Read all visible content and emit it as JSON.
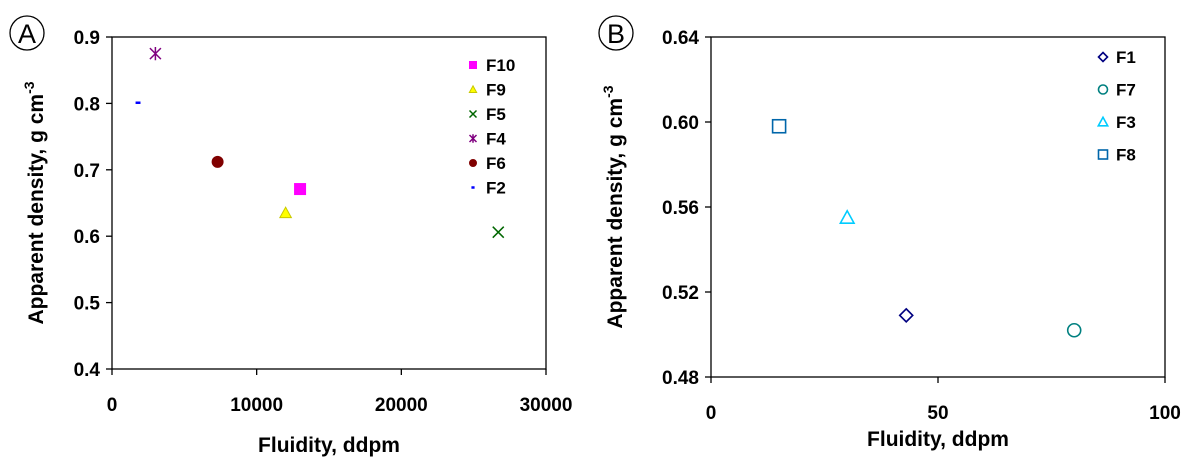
{
  "chart_data": [
    {
      "panel": "A",
      "type": "scatter",
      "title": "",
      "xlabel": "Fluidity, ddpm",
      "ylabel": "Apparent density, g cm",
      "ylabel_sup": "-3",
      "xlim": [
        0,
        30000
      ],
      "ylim": [
        0.4,
        0.9
      ],
      "x_ticks": [
        0,
        10000,
        20000,
        30000
      ],
      "y_ticks": [
        0.4,
        0.5,
        0.6,
        0.7,
        0.8,
        0.9
      ],
      "x_tick_labels": [
        "0",
        "10000",
        "20000",
        "30000"
      ],
      "y_tick_labels": [
        "0.4",
        "0.5",
        "0.6",
        "0.7",
        "0.8",
        "0.9"
      ],
      "grid": false,
      "legend_position": "top-right",
      "series": [
        {
          "name": "F10",
          "marker": "square",
          "filled": true,
          "color": "#ff00ff",
          "x": 13000,
          "y": 0.671
        },
        {
          "name": "F9",
          "marker": "triangle",
          "filled": true,
          "color": "#ffff00",
          "x": 12000,
          "y": 0.635
        },
        {
          "name": "F5",
          "marker": "x",
          "filled": false,
          "color": "#006600",
          "x": 26700,
          "y": 0.606
        },
        {
          "name": "F4",
          "marker": "star",
          "filled": false,
          "color": "#800080",
          "x": 3000,
          "y": 0.875
        },
        {
          "name": "F6",
          "marker": "circle",
          "filled": true,
          "color": "#800000",
          "x": 7300,
          "y": 0.712
        },
        {
          "name": "F2",
          "marker": "dash",
          "filled": true,
          "color": "#0000ff",
          "x": 1800,
          "y": 0.801
        }
      ]
    },
    {
      "panel": "B",
      "type": "scatter",
      "title": "",
      "xlabel": "Fluidity, ddpm",
      "ylabel": "Apparent density, g cm",
      "ylabel_sup": "-3",
      "xlim": [
        0,
        100
      ],
      "ylim": [
        0.48,
        0.64
      ],
      "x_ticks": [
        0,
        50,
        100
      ],
      "y_ticks": [
        0.48,
        0.52,
        0.56,
        0.6,
        0.64
      ],
      "x_tick_labels": [
        "0",
        "50",
        "100"
      ],
      "y_tick_labels": [
        "0.48",
        "0.52",
        "0.56",
        "0.60",
        "0.64"
      ],
      "grid": false,
      "legend_position": "top-right",
      "series": [
        {
          "name": "F1",
          "marker": "diamond",
          "filled": false,
          "color": "#000080",
          "x": 43,
          "y": 0.509
        },
        {
          "name": "F7",
          "marker": "circle",
          "filled": false,
          "color": "#008080",
          "x": 80,
          "y": 0.502
        },
        {
          "name": "F3",
          "marker": "triangle",
          "filled": false,
          "color": "#00ccff",
          "x": 30,
          "y": 0.555
        },
        {
          "name": "F8",
          "marker": "square",
          "filled": false,
          "color": "#0066aa",
          "x": 15,
          "y": 0.598
        }
      ]
    }
  ]
}
